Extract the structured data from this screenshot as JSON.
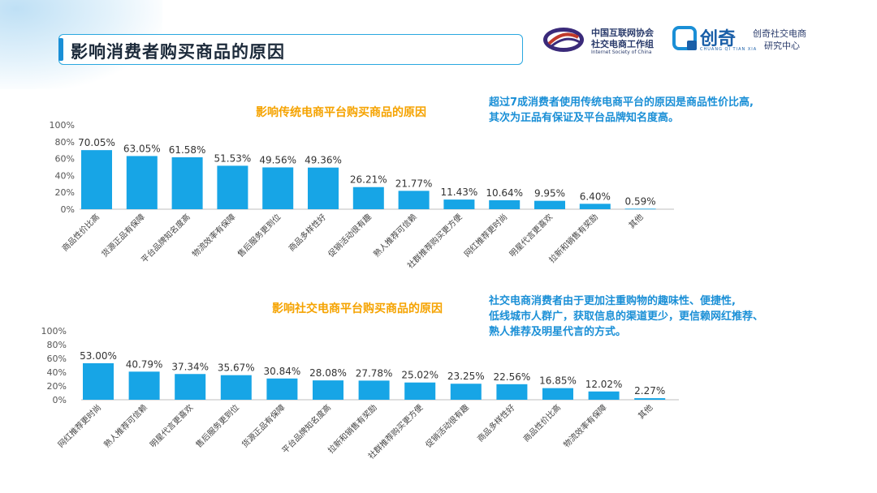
{
  "header": {
    "title": "影响消费者购买商品的原因",
    "logo_left": {
      "line1": "中国互联网协会",
      "line2": "社交电商工作组",
      "line3": "Internet Society of China"
    },
    "logo_right": {
      "brand": "创奇",
      "brand_sub": "CHUANG QI TIAN XIA",
      "caption_line1": "创奇社交电商",
      "caption_line2": "研究中心"
    }
  },
  "notes": {
    "top": [
      "超过7成消费者使用传统电商平台的原因是商品性价比高,",
      "其次为正品有保证及平台品牌知名度高。"
    ],
    "bottom": [
      "社交电商消费者由于更加注重购物的趣味性、便捷性,",
      "低线城市人群广，获取信息的渠道更少，更信赖网红推荐、",
      "熟人推荐及明星代言的方式。"
    ]
  },
  "colors": {
    "bar": "#17a5e6",
    "accent": "#1a8fd6",
    "title_orange": "#f5a300"
  },
  "chart_data": [
    {
      "type": "bar",
      "title": "影响传统电商平台购买商品的原因",
      "categories": [
        "商品性价比高",
        "货源正品有保障",
        "平台品牌知名度高",
        "物流效率有保障",
        "售后服务更到位",
        "商品多样性好",
        "促销活动很有趣",
        "熟人推荐可信赖",
        "社群推荐购买更方便",
        "网红推荐更时尚",
        "明星代言更喜欢",
        "拉新和销售有奖励",
        "其他"
      ],
      "values": [
        70.05,
        63.05,
        61.58,
        51.53,
        49.56,
        49.36,
        26.21,
        21.77,
        11.43,
        10.64,
        9.95,
        6.4,
        0.59
      ],
      "labels": [
        "70.05%",
        "63.05%",
        "61.58%",
        "51.53%",
        "49.56%",
        "49.36%",
        "26.21%",
        "21.77%",
        "11.43%",
        "10.64%",
        "9.95%",
        "6.40%",
        "0.59%"
      ],
      "yticks": [
        "0%",
        "20%",
        "40%",
        "60%",
        "80%",
        "100%"
      ],
      "ylim": [
        0,
        100
      ],
      "xlabel": "",
      "ylabel": "",
      "grid": false
    },
    {
      "type": "bar",
      "title": "影响社交电商平台购买商品的原因",
      "categories": [
        "网红推荐更时尚",
        "熟人推荐可信赖",
        "明星代言更喜欢",
        "售后服务更到位",
        "货源正品有保障",
        "平台品牌知名度高",
        "拉新和销售有奖励",
        "社群推荐购买更方便",
        "促销活动很有趣",
        "商品多样性好",
        "商品性价比高",
        "物流效率有保障",
        "其他"
      ],
      "values": [
        53.0,
        40.79,
        37.34,
        35.67,
        30.84,
        28.08,
        27.78,
        25.02,
        23.25,
        22.56,
        16.85,
        12.02,
        2.27
      ],
      "labels": [
        "53.00%",
        "40.79%",
        "37.34%",
        "35.67%",
        "30.84%",
        "28.08%",
        "27.78%",
        "25.02%",
        "23.25%",
        "22.56%",
        "16.85%",
        "12.02%",
        "2.27%"
      ],
      "yticks": [
        "0%",
        "20%",
        "40%",
        "60%",
        "80%",
        "100%"
      ],
      "ylim": [
        0,
        100
      ],
      "xlabel": "",
      "ylabel": "",
      "grid": false
    }
  ]
}
